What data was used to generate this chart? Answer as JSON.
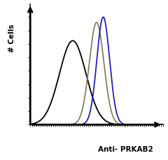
{
  "title": "",
  "xlabel": "Anti- PRKAB2",
  "ylabel": "# Cells",
  "background_color": "#ffffff",
  "plot_bg_color": "#ffffff",
  "black_line": {
    "color": "#000000",
    "mean": 0.32,
    "std": 0.1,
    "height": 0.78,
    "lw": 1.3
  },
  "gray_line": {
    "color": "#7a7a50",
    "mean": 0.5,
    "std": 0.055,
    "height": 0.95,
    "lw": 1.2
  },
  "blue_line": {
    "color": "#2222bb",
    "mean": 0.55,
    "std": 0.048,
    "height": 1.0,
    "lw": 1.3
  },
  "xlim": [
    0,
    1
  ],
  "ylim": [
    0,
    1.12
  ],
  "spine_linewidth": 1.1
}
